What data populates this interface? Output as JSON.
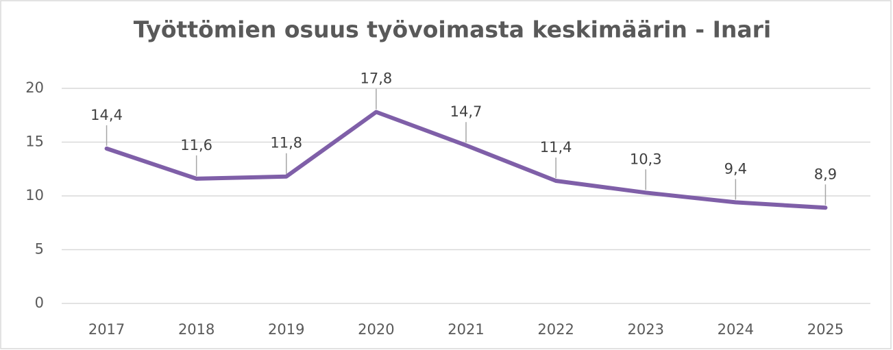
{
  "chart_data": {
    "type": "line",
    "title": "Työttömien osuus työvoimasta keskimäärin - Inari",
    "categories": [
      "2017",
      "2018",
      "2019",
      "2020",
      "2021",
      "2022",
      "2023",
      "2024",
      "2025"
    ],
    "values": [
      14.4,
      11.6,
      11.8,
      17.8,
      14.7,
      11.4,
      10.3,
      9.4,
      8.9
    ],
    "value_labels": [
      "14,4",
      "11,6",
      "11,8",
      "17,8",
      "14,7",
      "11,4",
      "10,3",
      "9,4",
      "8,9"
    ],
    "color": "#7f5fa8",
    "ylim": [
      0,
      20
    ],
    "yticks": [
      0,
      5,
      10,
      15,
      20
    ],
    "grid": true
  }
}
